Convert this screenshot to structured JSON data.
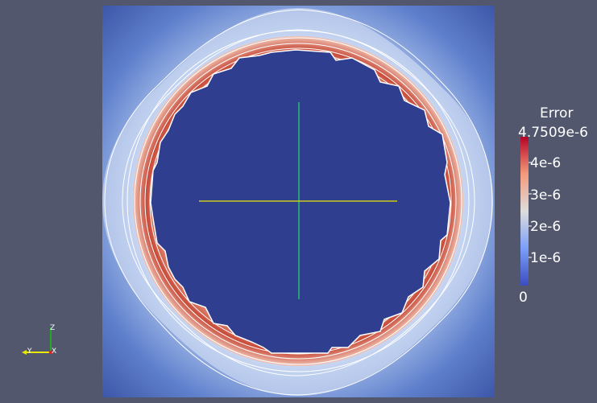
{
  "legend": {
    "title": "Error",
    "max_label": "4.7509e-6",
    "tick_labels": [
      "4e-6",
      "3e-6",
      "2e-6",
      "1e-6"
    ],
    "min_label": "0",
    "colors": {
      "low": "#3b4cc0",
      "mid": "#dddddd",
      "high": "#b40426"
    }
  },
  "axes_widget": {
    "z_label": "Z",
    "y_label": "Y",
    "x_label": "X",
    "colors": {
      "z": "#22aa22",
      "y": "#e8e800",
      "x": "#dd2222"
    }
  },
  "crosshair": {
    "colors": {
      "vertical": "#22dd66",
      "horizontal": "#e6e600"
    }
  },
  "field": {
    "background_color": "#3a53a4",
    "inner_color": "#2f3e8e",
    "contour_color": "#ffffff"
  }
}
